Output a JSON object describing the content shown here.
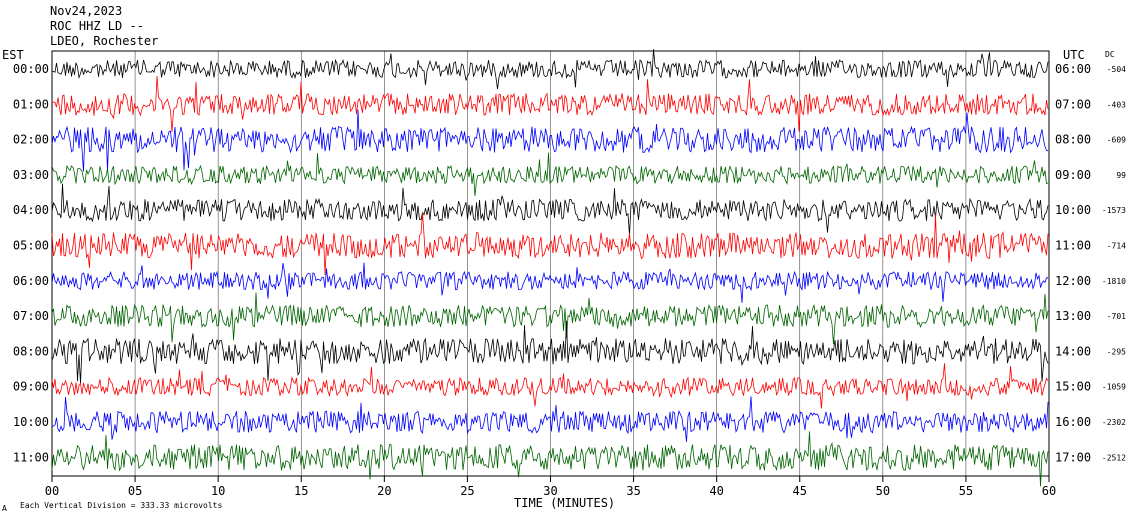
{
  "header": {
    "date": "Nov24,2023",
    "station": "ROC HHZ LD --",
    "network": "LDEO, Rochester"
  },
  "left_zone_label": "EST",
  "right_zone_label": "UTC",
  "dc_header": "DC",
  "footer": {
    "scale_prefix": "A",
    "scale_note": "Each Vertical Division = 333.33 microvolts"
  },
  "colors": {
    "trace_cycle": [
      "#000000",
      "#ff0000",
      "#0000ff",
      "#006400"
    ]
  },
  "chart_data": {
    "type": "line",
    "title": "",
    "xlabel": "TIME (MINUTES)",
    "ylabel": "",
    "xlim": [
      0,
      60
    ],
    "x_ticks": [
      "00",
      "05",
      "10",
      "15",
      "20",
      "25",
      "30",
      "35",
      "40",
      "45",
      "50",
      "55",
      "60"
    ],
    "grid": "vertical lines every 5 minutes",
    "rows": [
      {
        "est": "00:00",
        "utc": "06:00",
        "dc": "-504",
        "color": "#000000"
      },
      {
        "est": "01:00",
        "utc": "07:00",
        "dc": "-403",
        "color": "#ff0000"
      },
      {
        "est": "02:00",
        "utc": "08:00",
        "dc": "-609",
        "color": "#0000ff"
      },
      {
        "est": "03:00",
        "utc": "09:00",
        "dc": "99",
        "color": "#006400"
      },
      {
        "est": "04:00",
        "utc": "10:00",
        "dc": "-1573",
        "color": "#000000"
      },
      {
        "est": "05:00",
        "utc": "11:00",
        "dc": "-714",
        "color": "#ff0000"
      },
      {
        "est": "06:00",
        "utc": "12:00",
        "dc": "-1810",
        "color": "#0000ff"
      },
      {
        "est": "07:00",
        "utc": "13:00",
        "dc": "-701",
        "color": "#006400"
      },
      {
        "est": "08:00",
        "utc": "14:00",
        "dc": "-295",
        "color": "#000000"
      },
      {
        "est": "09:00",
        "utc": "15:00",
        "dc": "-1059",
        "color": "#ff0000"
      },
      {
        "est": "10:00",
        "utc": "16:00",
        "dc": "-2302",
        "color": "#0000ff"
      },
      {
        "est": "11:00",
        "utc": "17:00",
        "dc": "-2512",
        "color": "#006400"
      }
    ]
  }
}
